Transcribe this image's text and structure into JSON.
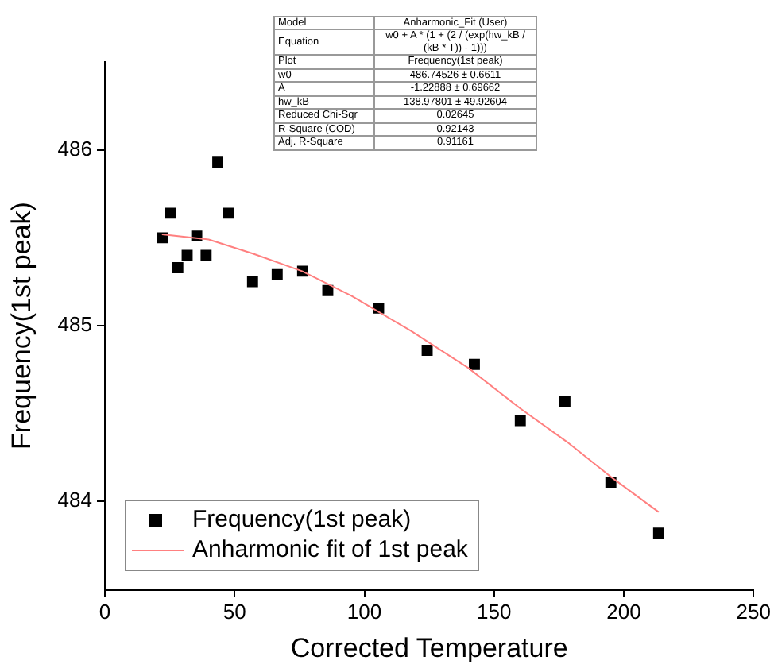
{
  "chart_data": {
    "type": "scatter",
    "xlabel": "Corrected Temperature",
    "ylabel": "Frequency(1st peak)",
    "xlim": [
      0,
      250
    ],
    "xticks": [
      0,
      50,
      100,
      150,
      200,
      250
    ],
    "ylim": [
      483.5,
      486.5
    ],
    "yticks": [
      484,
      485,
      486
    ],
    "grid": false,
    "legend": "bottom left",
    "marker": "square",
    "series": [
      {
        "name": "Frequency(1st peak)",
        "color": "#000000",
        "x": [
          22.2,
          25.4,
          28.1,
          31.7,
          35.4,
          39.0,
          43.5,
          47.7,
          56.9,
          66.4,
          76.2,
          85.9,
          105.5,
          124.2,
          142.4,
          160.1,
          177.3,
          195.0,
          213.4
        ],
        "values": [
          485.5,
          485.64,
          485.33,
          485.4,
          485.51,
          485.4,
          485.93,
          485.64,
          485.25,
          485.29,
          485.31,
          485.2,
          485.1,
          484.86,
          484.78,
          484.46,
          484.57,
          484.11,
          483.82
        ]
      },
      {
        "name": "Anharmonic fit of 1st peak",
        "type": "line",
        "marker": "none",
        "color": "#ff8080",
        "x": [
          22,
          40,
          57,
          76,
          95,
          118,
          140,
          160,
          178,
          195,
          213.4
        ],
        "values": [
          485.52,
          485.49,
          485.41,
          485.31,
          485.17,
          484.97,
          484.76,
          484.53,
          484.34,
          484.14,
          483.94
        ]
      }
    ],
    "annotations": [
      "Model",
      "Anharmonic_Fit (User)",
      "Equation",
      "w0 + A * (1 + (2 / (exp(hw_kB / (kB * T)) - 1)))",
      "Plot",
      "Frequency(1st peak)",
      "w0",
      "486.74526 ± 0.6611",
      "A",
      "-1.22888 ± 0.69662",
      "hw_kB",
      "138.97801 ± 49.92604",
      "Reduced Chi-Sqr",
      "0.02645",
      "R-Square (COD)",
      "0.92143",
      "Adj. R-Square",
      "0.91161"
    ]
  }
}
